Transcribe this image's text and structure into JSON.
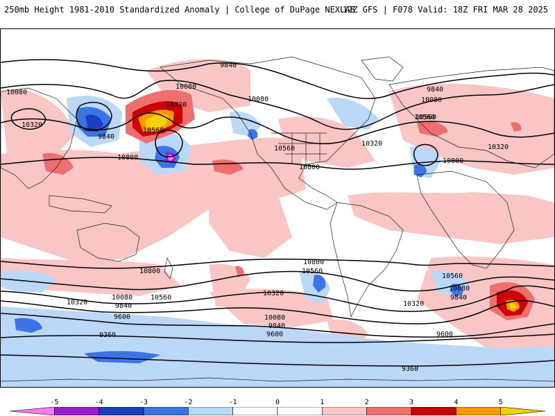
{
  "header": {
    "title_left": "250mb Height 1981-2010 Standardized Anomaly | College of DuPage NEXLAB",
    "title_right": "12Z GFS | F078 Valid: 18Z FRI MAR 28 2025"
  },
  "colorbar": {
    "ticks": [
      "-5",
      "-4",
      "-3",
      "-2",
      "-1",
      "0",
      "1",
      "2",
      "3",
      "4",
      "5"
    ],
    "colors": [
      "#f07cf0",
      "#9a1dcf",
      "#1a3fc0",
      "#3c74e6",
      "#bcd8f8",
      "#ffffff",
      "#ffffff",
      "#f9c5c5",
      "#ef6f6f",
      "#cc0000",
      "#f59a00",
      "#f7d000"
    ]
  },
  "map": {
    "land_color": "#ffffff",
    "coast_color": "#222222",
    "contour_labels": [
      "9840",
      "10080",
      "10320",
      "9840",
      "10080",
      "10320",
      "10560",
      "10800",
      "10080",
      "10560",
      "10320",
      "10560",
      "9840",
      "10080",
      "10560",
      "10320",
      "10800",
      "10800",
      "10800",
      "10560",
      "10800",
      "10560",
      "10080",
      "9840",
      "10320",
      "10080",
      "9840",
      "9600",
      "9360",
      "10560",
      "10320",
      "10080",
      "9840",
      "9600",
      "10320",
      "9600",
      "9360"
    ]
  }
}
